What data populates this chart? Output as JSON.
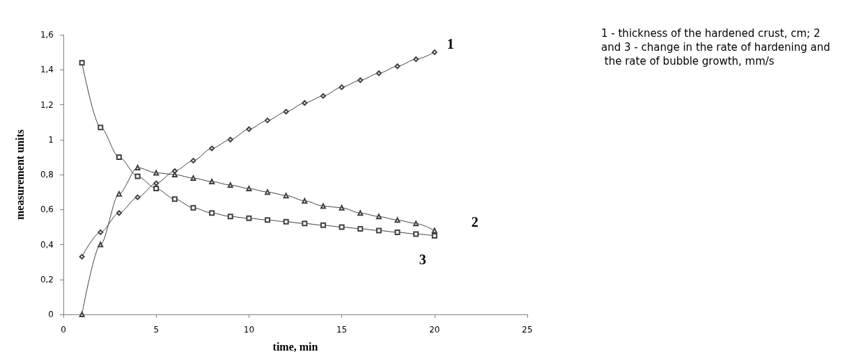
{
  "chart_data": {
    "type": "line",
    "xlabel": "time, min",
    "ylabel": "measurement units",
    "x": [
      1,
      2,
      3,
      4,
      5,
      6,
      7,
      8,
      9,
      10,
      11,
      12,
      13,
      14,
      15,
      16,
      17,
      18,
      19,
      20
    ],
    "series": [
      {
        "name": "1",
        "color": "#404040",
        "marker": "diamond",
        "values": [
          0.33,
          0.47,
          0.58,
          0.67,
          0.75,
          0.82,
          0.88,
          0.95,
          1.0,
          1.06,
          1.11,
          1.16,
          1.21,
          1.25,
          1.3,
          1.34,
          1.38,
          1.42,
          1.46,
          1.5
        ]
      },
      {
        "name": "2",
        "color": "#404040",
        "marker": "triangle",
        "values": [
          0,
          0.4,
          0.69,
          0.84,
          0.81,
          0.8,
          0.78,
          0.76,
          0.74,
          0.72,
          0.7,
          0.68,
          0.65,
          0.62,
          0.61,
          0.58,
          0.56,
          0.54,
          0.52,
          0.48
        ]
      },
      {
        "name": "3",
        "color": "#404040",
        "marker": "square",
        "values": [
          1.44,
          1.07,
          0.9,
          0.79,
          0.72,
          0.66,
          0.61,
          0.58,
          0.56,
          0.55,
          0.54,
          0.53,
          0.52,
          0.51,
          0.5,
          0.49,
          0.48,
          0.47,
          0.46,
          0.45
        ]
      }
    ],
    "xlim": [
      0,
      25
    ],
    "xticks": [
      0,
      5,
      10,
      15,
      20,
      25
    ],
    "ylim": [
      0,
      1.6
    ],
    "yticks": [
      0,
      {
        "value": 0.2,
        "label": "0,2"
      },
      {
        "value": 0.4,
        "label": "0,4"
      },
      {
        "value": 0.6,
        "label": "0,6"
      },
      {
        "value": 0.8,
        "label": "0,8"
      },
      1,
      {
        "value": 1.2,
        "label": "1,2"
      },
      {
        "value": 1.4,
        "label": "1,4"
      },
      {
        "value": 1.6,
        "label": "1,6"
      }
    ],
    "grid": false,
    "legend": false,
    "line_style": "solid",
    "annotations": [
      "1 - thickness of the hardened crust, cm; 2 and 3 - change in the rate of hardening and the rate of bubble growth, mm/s"
    ]
  }
}
